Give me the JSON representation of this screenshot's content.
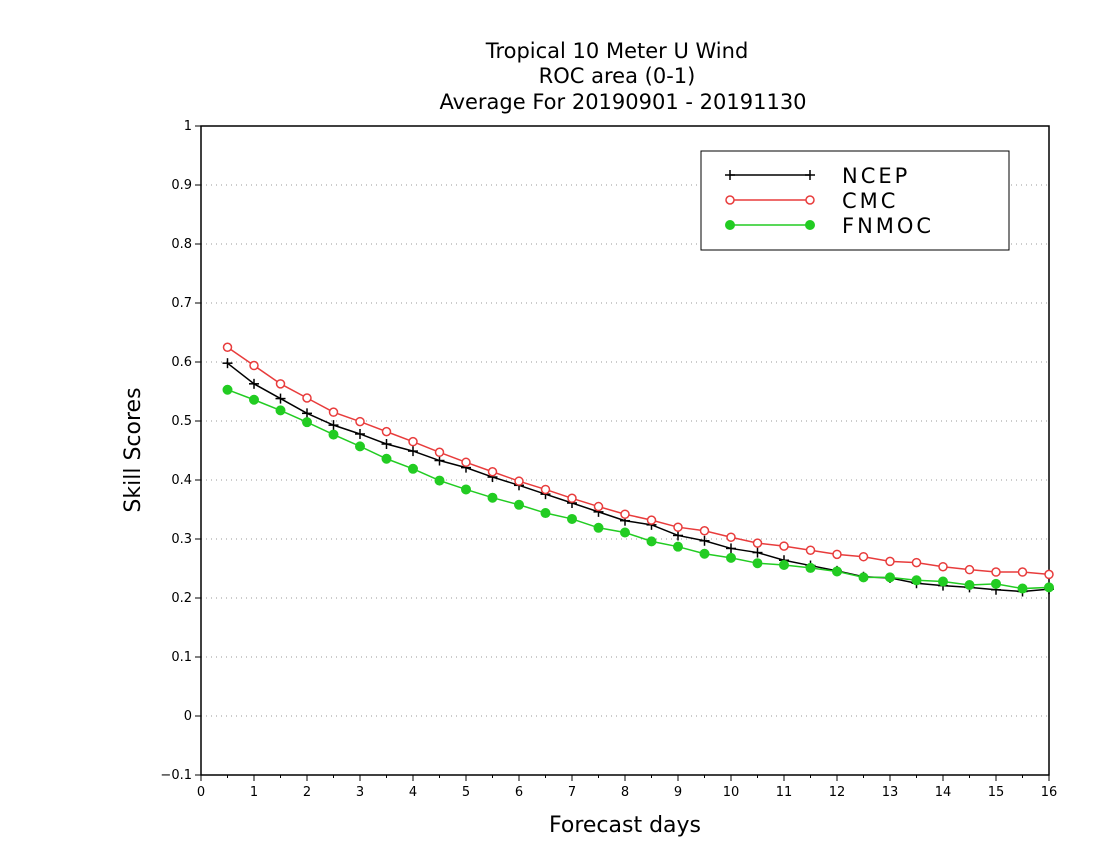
{
  "chart_data": {
    "type": "line",
    "title": [
      "Tropical 10 Meter U Wind",
      "ROC area (0-1)",
      "Average For 20190901 - 20191130"
    ],
    "xlabel": "Forecast days",
    "ylabel": "Skill Scores",
    "xlim": [
      0,
      16
    ],
    "ylim": [
      -0.1,
      1
    ],
    "x_ticks": [
      0,
      1,
      2,
      3,
      4,
      5,
      6,
      7,
      8,
      9,
      10,
      11,
      12,
      13,
      14,
      15,
      16
    ],
    "y_ticks": [
      -0.1,
      0,
      0.1,
      0.2,
      0.3,
      0.4,
      0.5,
      0.6,
      0.7,
      0.8,
      0.9,
      1
    ],
    "y_tick_labels": [
      "−0.1",
      "0",
      "0.1",
      "0.2",
      "0.3",
      "0.4",
      "0.5",
      "0.6",
      "0.7",
      "0.8",
      "0.9",
      "1"
    ],
    "grid": "horizontal dotted",
    "legend_position": "top-right",
    "x": [
      0.5,
      1,
      1.5,
      2,
      2.5,
      3,
      3.5,
      4,
      4.5,
      5,
      5.5,
      6,
      6.5,
      7,
      7.5,
      8,
      8.5,
      9,
      9.5,
      10,
      10.5,
      11,
      11.5,
      12,
      12.5,
      13,
      13.5,
      14,
      14.5,
      15,
      15.5,
      16
    ],
    "series": [
      {
        "name": "NCEP",
        "color": "#000000",
        "marker": "plus",
        "values": [
          0.598,
          0.563,
          0.538,
          0.513,
          0.493,
          0.478,
          0.461,
          0.449,
          0.433,
          0.421,
          0.405,
          0.391,
          0.376,
          0.361,
          0.346,
          0.331,
          0.324,
          0.306,
          0.297,
          0.284,
          0.277,
          0.264,
          0.255,
          0.246,
          0.236,
          0.234,
          0.225,
          0.221,
          0.218,
          0.214,
          0.211,
          0.215
        ]
      },
      {
        "name": "CMC",
        "color": "#e83c3c",
        "marker": "open-circle",
        "values": [
          0.625,
          0.594,
          0.563,
          0.539,
          0.515,
          0.499,
          0.482,
          0.465,
          0.447,
          0.43,
          0.414,
          0.398,
          0.384,
          0.369,
          0.355,
          0.342,
          0.332,
          0.32,
          0.314,
          0.303,
          0.293,
          0.288,
          0.281,
          0.274,
          0.27,
          0.262,
          0.26,
          0.253,
          0.248,
          0.244,
          0.244,
          0.24
        ]
      },
      {
        "name": "FNMOC",
        "color": "#22cc22",
        "marker": "filled-circle",
        "values": [
          0.553,
          0.536,
          0.518,
          0.498,
          0.477,
          0.457,
          0.436,
          0.419,
          0.399,
          0.384,
          0.37,
          0.358,
          0.344,
          0.334,
          0.319,
          0.311,
          0.296,
          0.287,
          0.275,
          0.268,
          0.259,
          0.256,
          0.251,
          0.245,
          0.235,
          0.235,
          0.23,
          0.228,
          0.222,
          0.224,
          0.216,
          0.218
        ]
      }
    ]
  }
}
